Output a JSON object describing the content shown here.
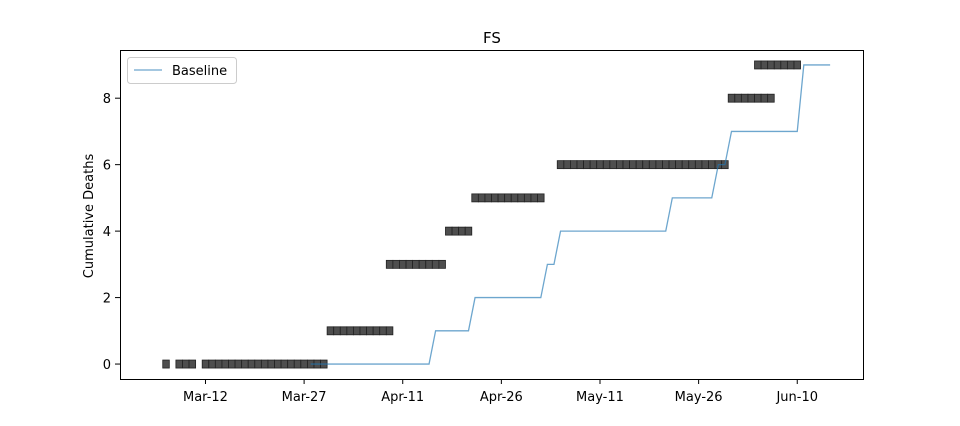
{
  "chart_data": {
    "type": "line",
    "title": "FS",
    "xlabel": "",
    "ylabel": "Cumulative Deaths",
    "legend_position": "upper-left",
    "grid": false,
    "x_ticks": [
      "Mar-12",
      "Mar-27",
      "Apr-11",
      "Apr-26",
      "May-11",
      "May-26",
      "Jun-10"
    ],
    "x_tick_dates": [
      "2020-03-12",
      "2020-03-27",
      "2020-04-11",
      "2020-04-26",
      "2020-05-11",
      "2020-05-26",
      "2020-06-10"
    ],
    "y_ticks": [
      0,
      2,
      4,
      6,
      8
    ],
    "xlim": [
      "2020-02-28",
      "2020-06-20"
    ],
    "ylim": [
      -0.45,
      9.45
    ],
    "colors": {
      "baseline": "#1f77b4",
      "observed": "#333333"
    },
    "series": [
      {
        "name": "Baseline",
        "kind": "line",
        "points": [
          [
            "2020-03-28",
            0
          ],
          [
            "2020-04-15",
            0
          ],
          [
            "2020-04-16",
            1
          ],
          [
            "2020-04-21",
            1
          ],
          [
            "2020-04-22",
            2
          ],
          [
            "2020-05-02",
            2
          ],
          [
            "2020-05-03",
            3
          ],
          [
            "2020-05-04",
            3
          ],
          [
            "2020-05-05",
            4
          ],
          [
            "2020-05-21",
            4
          ],
          [
            "2020-05-22",
            5
          ],
          [
            "2020-05-28",
            5
          ],
          [
            "2020-05-29",
            6
          ],
          [
            "2020-05-30",
            6
          ],
          [
            "2020-05-31",
            7
          ],
          [
            "2020-06-10",
            7
          ],
          [
            "2020-06-11",
            9
          ],
          [
            "2020-06-15",
            9
          ]
        ]
      },
      {
        "kind": "markers",
        "points": [
          [
            "2020-03-06",
            0
          ],
          [
            "2020-03-08",
            0
          ],
          [
            "2020-03-09",
            0
          ],
          [
            "2020-03-10",
            0
          ],
          [
            "2020-03-12",
            0
          ],
          [
            "2020-03-13",
            0
          ],
          [
            "2020-03-14",
            0
          ],
          [
            "2020-03-15",
            0
          ],
          [
            "2020-03-16",
            0
          ],
          [
            "2020-03-17",
            0
          ],
          [
            "2020-03-18",
            0
          ],
          [
            "2020-03-19",
            0
          ],
          [
            "2020-03-20",
            0
          ],
          [
            "2020-03-21",
            0
          ],
          [
            "2020-03-22",
            0
          ],
          [
            "2020-03-23",
            0
          ],
          [
            "2020-03-24",
            0
          ],
          [
            "2020-03-25",
            0
          ],
          [
            "2020-03-26",
            0
          ],
          [
            "2020-03-27",
            0
          ],
          [
            "2020-03-28",
            0
          ],
          [
            "2020-03-29",
            0
          ],
          [
            "2020-03-30",
            0
          ],
          [
            "2020-03-31",
            1
          ],
          [
            "2020-04-01",
            1
          ],
          [
            "2020-04-02",
            1
          ],
          [
            "2020-04-03",
            1
          ],
          [
            "2020-04-04",
            1
          ],
          [
            "2020-04-05",
            1
          ],
          [
            "2020-04-06",
            1
          ],
          [
            "2020-04-07",
            1
          ],
          [
            "2020-04-08",
            1
          ],
          [
            "2020-04-09",
            1
          ],
          [
            "2020-04-09",
            3
          ],
          [
            "2020-04-10",
            3
          ],
          [
            "2020-04-11",
            3
          ],
          [
            "2020-04-12",
            3
          ],
          [
            "2020-04-13",
            3
          ],
          [
            "2020-04-14",
            3
          ],
          [
            "2020-04-15",
            3
          ],
          [
            "2020-04-16",
            3
          ],
          [
            "2020-04-17",
            3
          ],
          [
            "2020-04-18",
            4
          ],
          [
            "2020-04-19",
            4
          ],
          [
            "2020-04-20",
            4
          ],
          [
            "2020-04-21",
            4
          ],
          [
            "2020-04-22",
            5
          ],
          [
            "2020-04-23",
            5
          ],
          [
            "2020-04-24",
            5
          ],
          [
            "2020-04-25",
            5
          ],
          [
            "2020-04-26",
            5
          ],
          [
            "2020-04-27",
            5
          ],
          [
            "2020-04-28",
            5
          ],
          [
            "2020-04-29",
            5
          ],
          [
            "2020-04-30",
            5
          ],
          [
            "2020-05-01",
            5
          ],
          [
            "2020-05-02",
            5
          ],
          [
            "2020-05-05",
            6
          ],
          [
            "2020-05-06",
            6
          ],
          [
            "2020-05-07",
            6
          ],
          [
            "2020-05-08",
            6
          ],
          [
            "2020-05-09",
            6
          ],
          [
            "2020-05-10",
            6
          ],
          [
            "2020-05-11",
            6
          ],
          [
            "2020-05-12",
            6
          ],
          [
            "2020-05-13",
            6
          ],
          [
            "2020-05-14",
            6
          ],
          [
            "2020-05-15",
            6
          ],
          [
            "2020-05-16",
            6
          ],
          [
            "2020-05-17",
            6
          ],
          [
            "2020-05-18",
            6
          ],
          [
            "2020-05-19",
            6
          ],
          [
            "2020-05-20",
            6
          ],
          [
            "2020-05-21",
            6
          ],
          [
            "2020-05-22",
            6
          ],
          [
            "2020-05-23",
            6
          ],
          [
            "2020-05-24",
            6
          ],
          [
            "2020-05-25",
            6
          ],
          [
            "2020-05-26",
            6
          ],
          [
            "2020-05-27",
            6
          ],
          [
            "2020-05-28",
            6
          ],
          [
            "2020-05-29",
            6
          ],
          [
            "2020-05-30",
            6
          ],
          [
            "2020-05-31",
            8
          ],
          [
            "2020-06-01",
            8
          ],
          [
            "2020-06-02",
            8
          ],
          [
            "2020-06-03",
            8
          ],
          [
            "2020-06-04",
            8
          ],
          [
            "2020-06-05",
            8
          ],
          [
            "2020-06-06",
            8
          ],
          [
            "2020-06-04",
            9
          ],
          [
            "2020-06-05",
            9
          ],
          [
            "2020-06-06",
            9
          ],
          [
            "2020-06-07",
            9
          ],
          [
            "2020-06-08",
            9
          ],
          [
            "2020-06-09",
            9
          ],
          [
            "2020-06-10",
            9
          ]
        ]
      }
    ]
  }
}
